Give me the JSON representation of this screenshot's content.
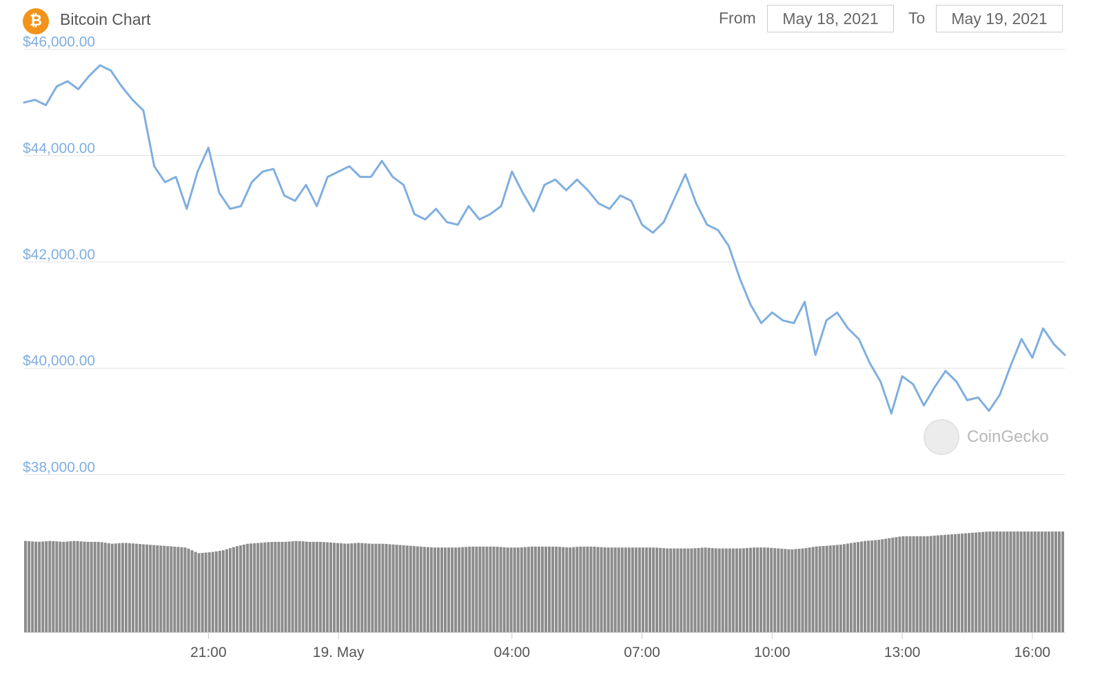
{
  "header": {
    "logo_glyph": "₿",
    "title": "Bitcoin Chart",
    "from_label": "From",
    "from_date": "May 18, 2021",
    "to_label": "To",
    "to_date": "May 19, 2021"
  },
  "watermark": {
    "text": "CoinGecko"
  },
  "colors": {
    "line": "#7faee0",
    "volume": "#8c8c8c",
    "grid": "#e0e0e0",
    "bitcoin": "#f2931a"
  },
  "chart_data": {
    "type": "line",
    "title": "",
    "xlabel": "",
    "ylabel": "",
    "ylim": [
      37850,
      46150
    ],
    "grid": true,
    "y_ticks": [
      46000,
      44000,
      42000,
      40000,
      38000
    ],
    "y_tick_labels": [
      "$46,000.00",
      "$44,000.00",
      "$42,000.00",
      "$40,000.00",
      "$38,000.00"
    ],
    "x_range": [
      "2021-05-18T16:45",
      "2021-05-19T16:45"
    ],
    "x_ticks": [
      "2021-05-18T21:00",
      "2021-05-19T00:00",
      "2021-05-19T04:00",
      "2021-05-19T07:00",
      "2021-05-19T10:00",
      "2021-05-19T13:00",
      "2021-05-19T16:00"
    ],
    "x_tick_labels": [
      "21:00",
      "19. May",
      "04:00",
      "07:00",
      "10:00",
      "13:00",
      "16:00"
    ],
    "series": [
      {
        "type": "line",
        "points": [
          [
            "2021-05-18T16:45",
            45000
          ],
          [
            "2021-05-18T17:00",
            45050
          ],
          [
            "2021-05-18T17:15",
            44950
          ],
          [
            "2021-05-18T17:30",
            45300
          ],
          [
            "2021-05-18T17:45",
            45400
          ],
          [
            "2021-05-18T18:00",
            45250
          ],
          [
            "2021-05-18T18:15",
            45500
          ],
          [
            "2021-05-18T18:30",
            45700
          ],
          [
            "2021-05-18T18:45",
            45600
          ],
          [
            "2021-05-18T19:00",
            45300
          ],
          [
            "2021-05-18T19:15",
            45050
          ],
          [
            "2021-05-18T19:30",
            44850
          ],
          [
            "2021-05-18T19:45",
            43800
          ],
          [
            "2021-05-18T20:00",
            43500
          ],
          [
            "2021-05-18T20:15",
            43600
          ],
          [
            "2021-05-18T20:30",
            43000
          ],
          [
            "2021-05-18T20:45",
            43700
          ],
          [
            "2021-05-18T21:00",
            44150
          ],
          [
            "2021-05-18T21:15",
            43300
          ],
          [
            "2021-05-18T21:30",
            43000
          ],
          [
            "2021-05-18T21:45",
            43050
          ],
          [
            "2021-05-18T22:00",
            43500
          ],
          [
            "2021-05-18T22:15",
            43700
          ],
          [
            "2021-05-18T22:30",
            43750
          ],
          [
            "2021-05-18T22:45",
            43250
          ],
          [
            "2021-05-18T23:00",
            43150
          ],
          [
            "2021-05-18T23:15",
            43450
          ],
          [
            "2021-05-18T23:30",
            43050
          ],
          [
            "2021-05-18T23:45",
            43600
          ],
          [
            "2021-05-19T00:00",
            43700
          ],
          [
            "2021-05-19T00:15",
            43800
          ],
          [
            "2021-05-19T00:30",
            43600
          ],
          [
            "2021-05-19T00:45",
            43600
          ],
          [
            "2021-05-19T01:00",
            43900
          ],
          [
            "2021-05-19T01:15",
            43600
          ],
          [
            "2021-05-19T01:30",
            43450
          ],
          [
            "2021-05-19T01:45",
            42900
          ],
          [
            "2021-05-19T02:00",
            42800
          ],
          [
            "2021-05-19T02:15",
            43000
          ],
          [
            "2021-05-19T02:30",
            42750
          ],
          [
            "2021-05-19T02:45",
            42700
          ],
          [
            "2021-05-19T03:00",
            43050
          ],
          [
            "2021-05-19T03:15",
            42800
          ],
          [
            "2021-05-19T03:30",
            42900
          ],
          [
            "2021-05-19T03:45",
            43050
          ],
          [
            "2021-05-19T04:00",
            43700
          ],
          [
            "2021-05-19T04:15",
            43300
          ],
          [
            "2021-05-19T04:30",
            42950
          ],
          [
            "2021-05-19T04:45",
            43450
          ],
          [
            "2021-05-19T05:00",
            43550
          ],
          [
            "2021-05-19T05:15",
            43350
          ],
          [
            "2021-05-19T05:30",
            43550
          ],
          [
            "2021-05-19T05:45",
            43350
          ],
          [
            "2021-05-19T06:00",
            43100
          ],
          [
            "2021-05-19T06:15",
            43000
          ],
          [
            "2021-05-19T06:30",
            43250
          ],
          [
            "2021-05-19T06:45",
            43150
          ],
          [
            "2021-05-19T07:00",
            42700
          ],
          [
            "2021-05-19T07:15",
            42550
          ],
          [
            "2021-05-19T07:30",
            42750
          ],
          [
            "2021-05-19T07:45",
            43200
          ],
          [
            "2021-05-19T08:00",
            43650
          ],
          [
            "2021-05-19T08:15",
            43100
          ],
          [
            "2021-05-19T08:30",
            42700
          ],
          [
            "2021-05-19T08:45",
            42600
          ],
          [
            "2021-05-19T09:00",
            42300
          ],
          [
            "2021-05-19T09:15",
            41700
          ],
          [
            "2021-05-19T09:30",
            41200
          ],
          [
            "2021-05-19T09:45",
            40850
          ],
          [
            "2021-05-19T10:00",
            41050
          ],
          [
            "2021-05-19T10:15",
            40900
          ],
          [
            "2021-05-19T10:30",
            40850
          ],
          [
            "2021-05-19T10:45",
            41250
          ],
          [
            "2021-05-19T11:00",
            40250
          ],
          [
            "2021-05-19T11:15",
            40900
          ],
          [
            "2021-05-19T11:30",
            41050
          ],
          [
            "2021-05-19T11:45",
            40750
          ],
          [
            "2021-05-19T12:00",
            40550
          ],
          [
            "2021-05-19T12:15",
            40100
          ],
          [
            "2021-05-19T12:30",
            39750
          ],
          [
            "2021-05-19T12:45",
            39150
          ],
          [
            "2021-05-19T13:00",
            39850
          ],
          [
            "2021-05-19T13:15",
            39700
          ],
          [
            "2021-05-19T13:30",
            39300
          ],
          [
            "2021-05-19T13:45",
            39650
          ],
          [
            "2021-05-19T14:00",
            39950
          ],
          [
            "2021-05-19T14:15",
            39750
          ],
          [
            "2021-05-19T14:30",
            39400
          ],
          [
            "2021-05-19T14:45",
            39450
          ],
          [
            "2021-05-19T15:00",
            39200
          ],
          [
            "2021-05-19T15:15",
            39500
          ],
          [
            "2021-05-19T15:30",
            40050
          ],
          [
            "2021-05-19T15:45",
            40550
          ],
          [
            "2021-05-19T16:00",
            40200
          ],
          [
            "2021-05-19T16:15",
            40750
          ],
          [
            "2021-05-19T16:30",
            40450
          ],
          [
            "2021-05-19T16:45",
            40250
          ]
        ]
      },
      {
        "type": "bar",
        "unit": "relative",
        "values": [
          0.97,
          0.96,
          0.97,
          0.96,
          0.97,
          0.96,
          0.96,
          0.94,
          0.95,
          0.94,
          0.93,
          0.92,
          0.91,
          0.9,
          0.84,
          0.85,
          0.87,
          0.91,
          0.94,
          0.95,
          0.96,
          0.96,
          0.97,
          0.96,
          0.96,
          0.95,
          0.94,
          0.95,
          0.94,
          0.94,
          0.93,
          0.92,
          0.91,
          0.9,
          0.9,
          0.9,
          0.91,
          0.91,
          0.91,
          0.9,
          0.9,
          0.91,
          0.91,
          0.91,
          0.9,
          0.91,
          0.91,
          0.9,
          0.9,
          0.9,
          0.9,
          0.9,
          0.89,
          0.89,
          0.89,
          0.9,
          0.89,
          0.89,
          0.89,
          0.9,
          0.9,
          0.89,
          0.88,
          0.89,
          0.91,
          0.92,
          0.93,
          0.95,
          0.97,
          0.98,
          1.0,
          1.02,
          1.02,
          1.02,
          1.03,
          1.04,
          1.05,
          1.06,
          1.07,
          1.07,
          1.07,
          1.07,
          1.07,
          1.07,
          1.07
        ]
      }
    ]
  }
}
